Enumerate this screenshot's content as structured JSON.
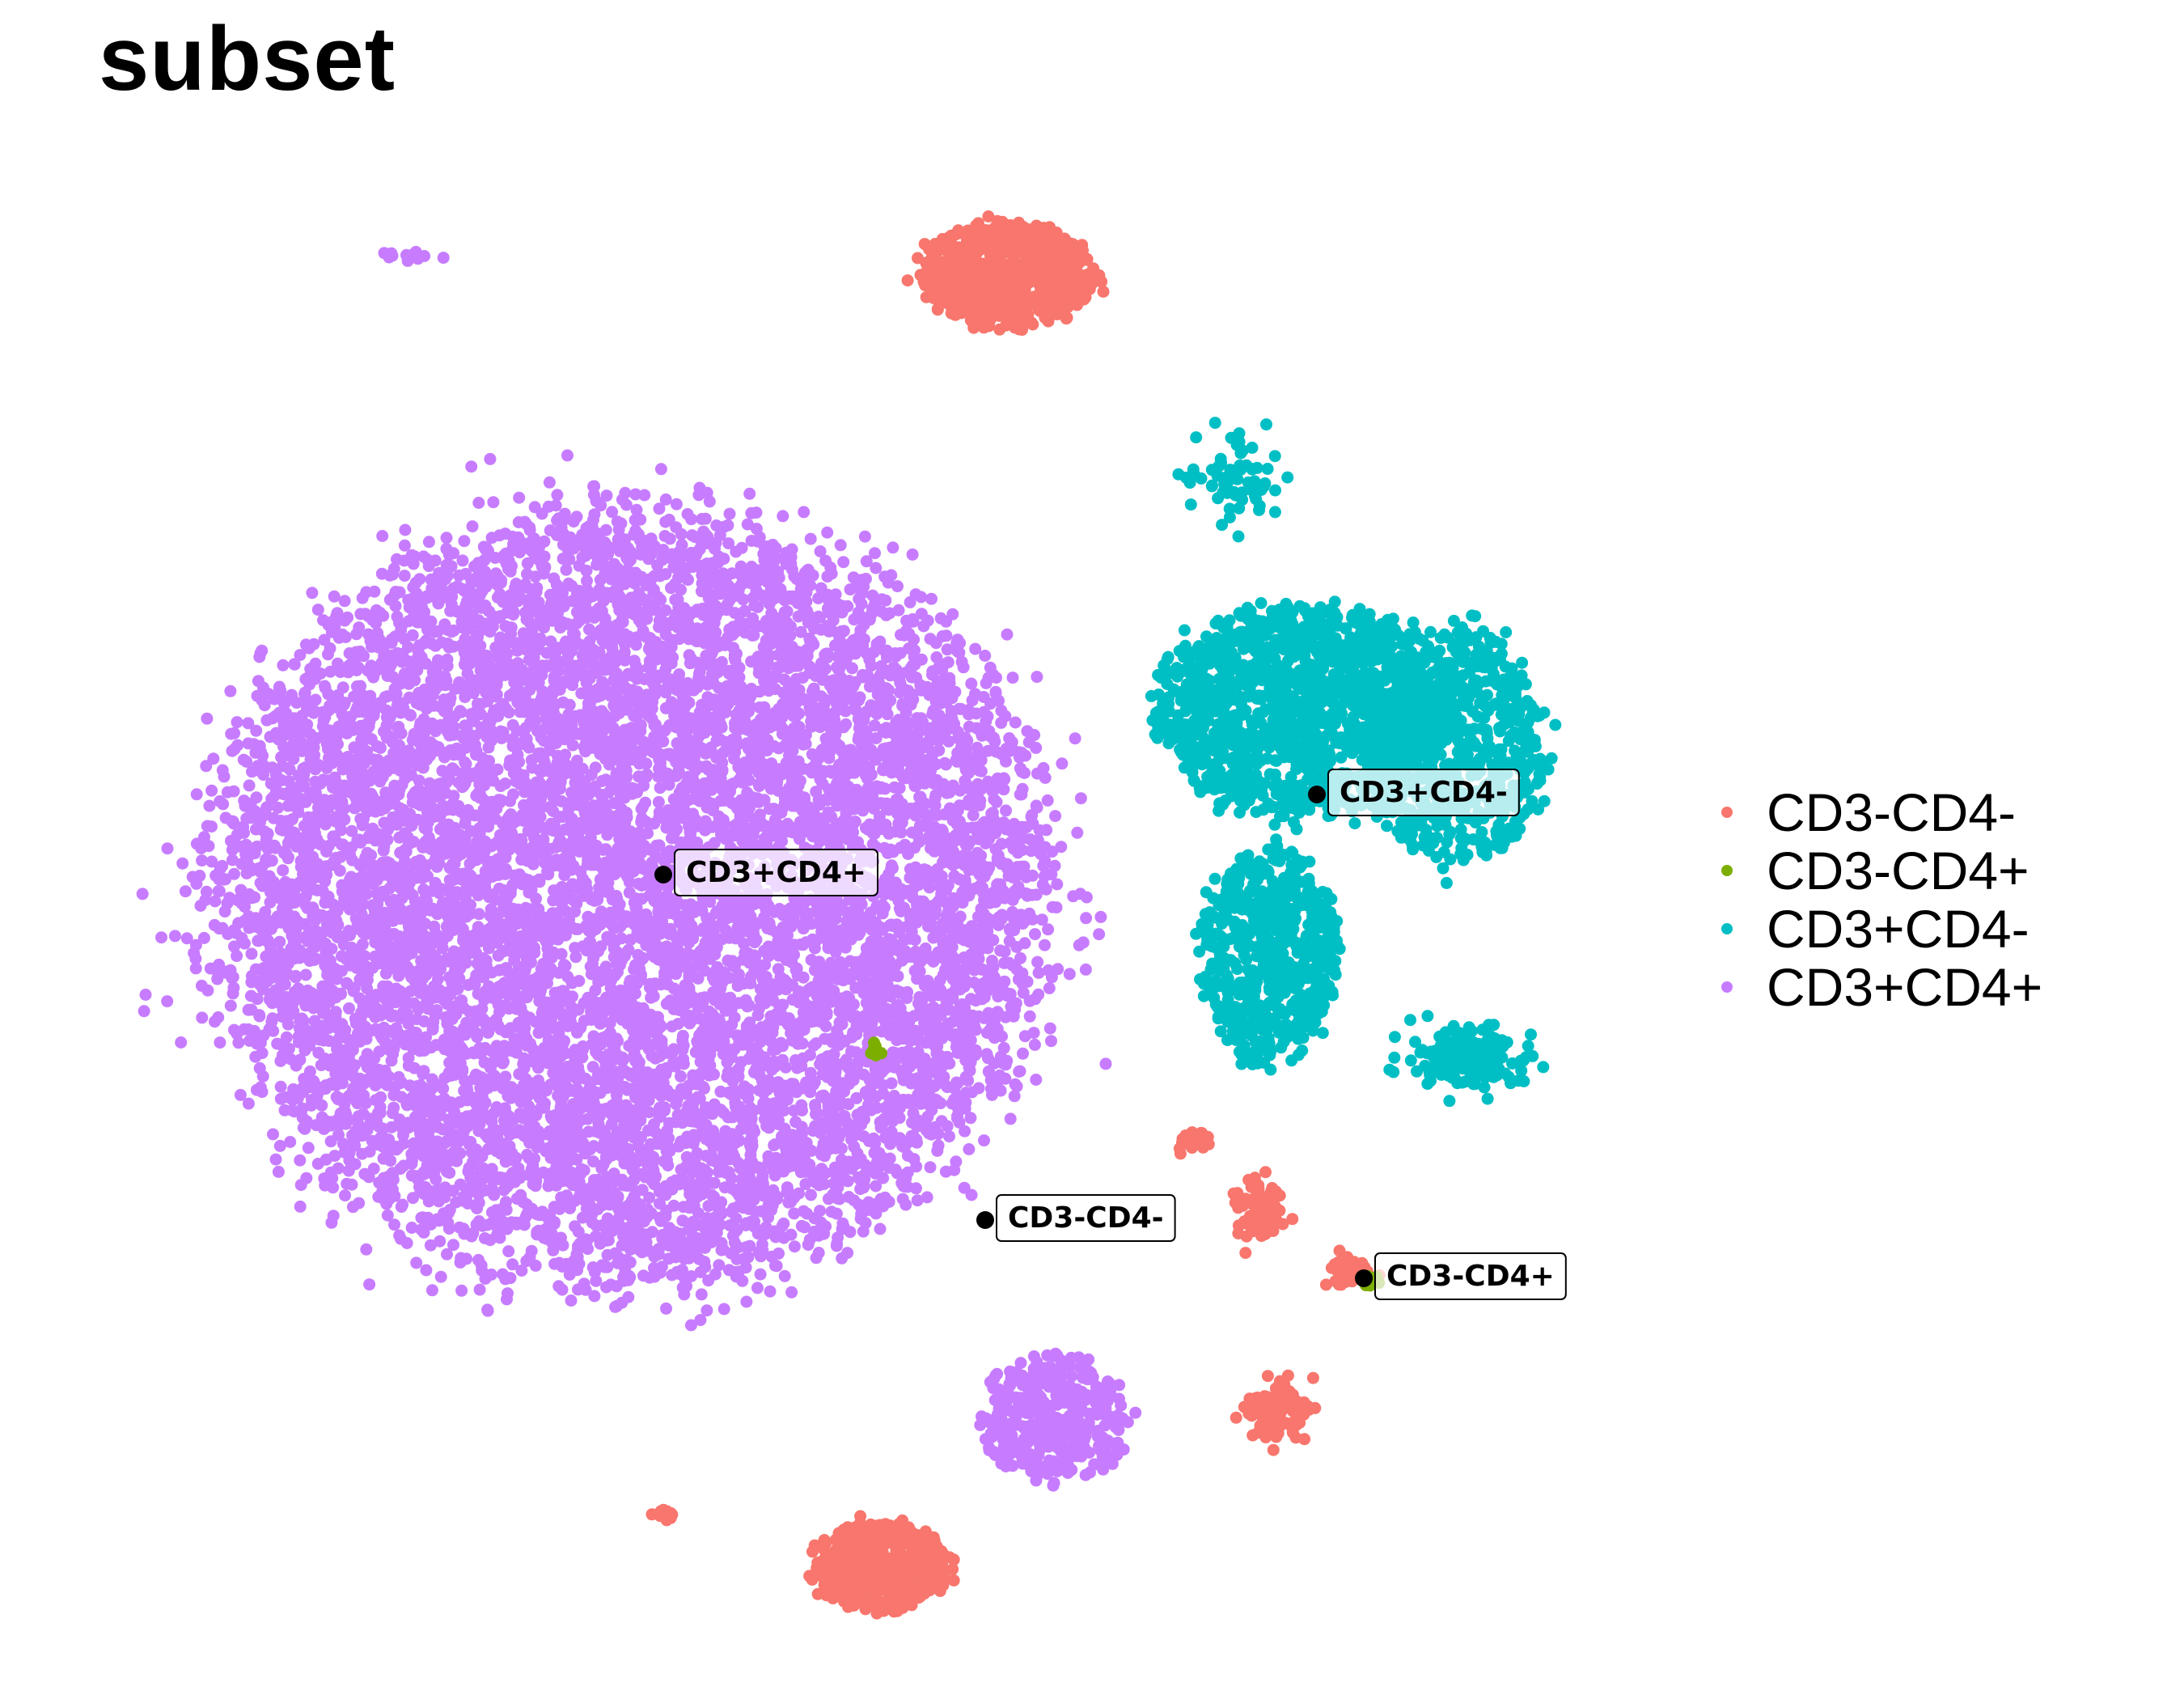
{
  "chart_data": {
    "type": "scatter",
    "title": "subset",
    "xlabel": "",
    "ylabel": "",
    "grid": false,
    "legend_placement": "right",
    "series": [
      {
        "name": "CD3-CD4-",
        "color": "#F8766D"
      },
      {
        "name": "CD3-CD4+",
        "color": "#7CAE00"
      },
      {
        "name": "CD3+CD4-",
        "color": "#00BFC4"
      },
      {
        "name": "CD3+CD4+",
        "color": "#C77CFF"
      }
    ],
    "clusters": [
      {
        "series": 3,
        "cx": 780,
        "cy": 1110,
        "rx": 510,
        "ry": 470,
        "n": 9500
      },
      {
        "series": 3,
        "cx": 1305,
        "cy": 1755,
        "rx": 90,
        "ry": 75,
        "n": 420
      },
      {
        "series": 3,
        "cx": 510,
        "cy": 315,
        "rx": 25,
        "ry": 6,
        "n": 12
      },
      {
        "series": 2,
        "cx": 1610,
        "cy": 880,
        "rx": 180,
        "ry": 130,
        "n": 1300
      },
      {
        "series": 2,
        "cx": 1800,
        "cy": 920,
        "rx": 110,
        "ry": 150,
        "n": 700
      },
      {
        "series": 2,
        "cx": 1570,
        "cy": 1180,
        "rx": 85,
        "ry": 130,
        "n": 650
      },
      {
        "series": 2,
        "cx": 1820,
        "cy": 1305,
        "rx": 70,
        "ry": 35,
        "n": 180
      },
      {
        "series": 2,
        "cx": 1525,
        "cy": 590,
        "rx": 50,
        "ry": 45,
        "n": 70
      },
      {
        "series": 0,
        "cx": 1245,
        "cy": 340,
        "rx": 110,
        "ry": 65,
        "n": 650
      },
      {
        "series": 0,
        "cx": 1090,
        "cy": 1935,
        "rx": 85,
        "ry": 55,
        "n": 420
      },
      {
        "series": 0,
        "cx": 1580,
        "cy": 1745,
        "rx": 32,
        "ry": 28,
        "n": 110
      },
      {
        "series": 0,
        "cx": 1555,
        "cy": 1495,
        "rx": 28,
        "ry": 32,
        "n": 90
      },
      {
        "series": 0,
        "cx": 1670,
        "cy": 1572,
        "rx": 30,
        "ry": 16,
        "n": 50
      },
      {
        "series": 0,
        "cx": 1475,
        "cy": 1408,
        "rx": 22,
        "ry": 10,
        "n": 25
      },
      {
        "series": 0,
        "cx": 820,
        "cy": 1872,
        "rx": 16,
        "ry": 6,
        "n": 12
      },
      {
        "series": 1,
        "cx": 1690,
        "cy": 1582,
        "rx": 14,
        "ry": 10,
        "n": 14
      },
      {
        "series": 1,
        "cx": 1085,
        "cy": 1298,
        "rx": 8,
        "ry": 8,
        "n": 10
      }
    ],
    "labels": [
      {
        "text": "CD3+CD4-",
        "x": 1628,
        "y": 982
      },
      {
        "text": "CD3+CD4+",
        "x": 820,
        "y": 1081
      },
      {
        "text": "CD3-CD4-",
        "x": 1218,
        "y": 1508
      },
      {
        "text": "CD3-CD4+",
        "x": 1686,
        "y": 1580
      }
    ]
  }
}
